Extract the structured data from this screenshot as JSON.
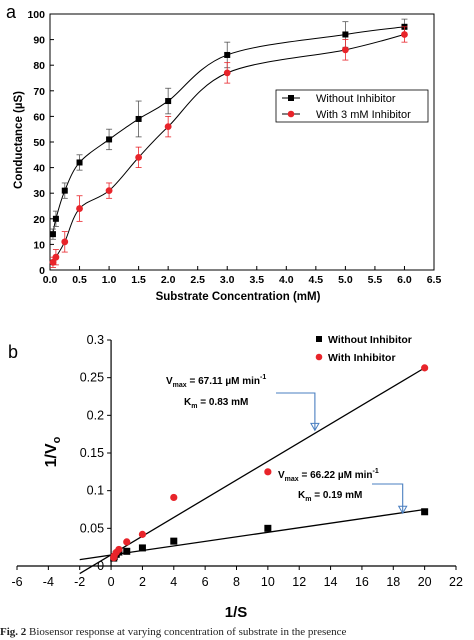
{
  "caption": {
    "label": "Fig. 2",
    "text": "Biosensor response at varying concentration of substrate in the presence"
  },
  "chart_data": [
    {
      "panel": "a",
      "type": "scatter",
      "xlabel": "Substrate Concentration (mM)",
      "ylabel": "Conductance (µS)",
      "xlim": [
        0,
        6.5
      ],
      "ylim": [
        0,
        100
      ],
      "xticks": [
        "0.0",
        "0.5",
        "1.0",
        "1.5",
        "2.0",
        "2.5",
        "3.0",
        "3.5",
        "4.0",
        "4.5",
        "5.0",
        "5.5",
        "6.0",
        "6.5"
      ],
      "yticks": [
        "0",
        "10",
        "20",
        "30",
        "40",
        "50",
        "60",
        "70",
        "80",
        "90",
        "100"
      ],
      "legend_position": "right",
      "grid": false,
      "series": [
        {
          "name": "Without Inhibitor",
          "marker": "square",
          "color": "#000000",
          "x": [
            0.05,
            0.1,
            0.25,
            0.5,
            1.0,
            1.5,
            2.0,
            3.0,
            5.0,
            6.0
          ],
          "y": [
            14,
            20,
            31,
            42,
            51,
            59,
            66,
            84,
            92,
            95
          ],
          "err": [
            2,
            3,
            3,
            3,
            4,
            7,
            5,
            5,
            5,
            3
          ]
        },
        {
          "name": "With 3 mM Inhibitor",
          "marker": "circle",
          "color": "#e8242a",
          "x": [
            0.05,
            0.1,
            0.25,
            0.5,
            1.0,
            1.5,
            2.0,
            3.0,
            5.0,
            6.0
          ],
          "y": [
            3,
            5,
            11,
            24,
            31,
            44,
            56,
            77,
            86,
            92
          ],
          "err": [
            2,
            3,
            4,
            5,
            3,
            4,
            4,
            4,
            4,
            3
          ]
        }
      ]
    },
    {
      "panel": "b",
      "type": "scatter",
      "xlabel": "1/S",
      "ylabel": "1/Vo",
      "xlim": [
        -6,
        22
      ],
      "ylim": [
        0,
        0.3
      ],
      "xticks": [
        "-6",
        "-4",
        "-2",
        "0",
        "2",
        "4",
        "6",
        "8",
        "10",
        "12",
        "14",
        "16",
        "18",
        "20",
        "22"
      ],
      "yticks": [
        "0",
        "0.05",
        "0.1",
        "0.15",
        "0.2",
        "0.25",
        "0.3"
      ],
      "legend_position": "top-right",
      "grid": false,
      "series": [
        {
          "name": "Without Inhibitor",
          "marker": "square",
          "color": "#000000",
          "x": [
            0.17,
            0.2,
            0.33,
            0.5,
            1,
            2,
            4,
            10,
            20
          ],
          "y": [
            0.0105,
            0.0125,
            0.0155,
            0.0185,
            0.0195,
            0.024,
            0.033,
            0.05,
            0.072
          ],
          "fit_line": {
            "x": [
              -2,
              20
            ],
            "y": [
              0.0085,
              0.075
            ]
          }
        },
        {
          "name": "With Inhibitor",
          "marker": "circle",
          "color": "#e8242a",
          "x": [
            0.17,
            0.2,
            0.33,
            0.5,
            1,
            2,
            4,
            10,
            20
          ],
          "y": [
            0.011,
            0.0135,
            0.018,
            0.022,
            0.032,
            0.042,
            0.091,
            0.125,
            0.263
          ],
          "fit_line": {
            "x": [
              -2,
              20
            ],
            "y": [
              -0.01,
              0.263
            ]
          }
        }
      ],
      "annotations": [
        {
          "vmax": "67.11 µM min",
          "km": "0.83 mM",
          "arrow_to": [
            13,
            0.18
          ]
        },
        {
          "vmax": "66.22 µM min",
          "km": "0.19 mM",
          "arrow_to": [
            18.6,
            0.07
          ]
        }
      ],
      "text": {
        "vmax_prefix": "V",
        "vmax_sub": "max",
        "vmax_exp": "-1",
        "km_prefix": "K",
        "km_sub": "m",
        "y_main": "1/V",
        "y_sub": "o"
      }
    }
  ]
}
